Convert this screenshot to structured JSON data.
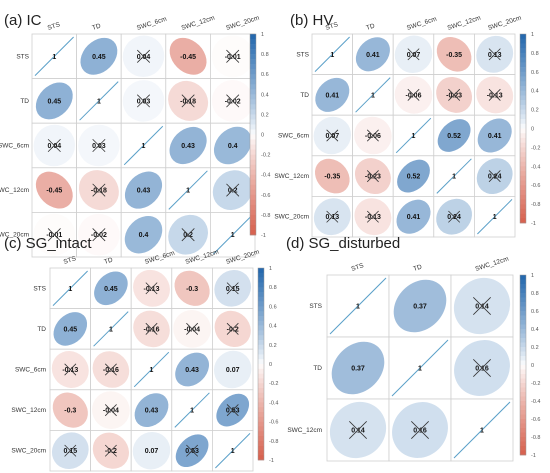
{
  "colors": {
    "positive": "#2166ac",
    "negative": "#d6604d",
    "neutral": "#ffffff",
    "grid": "#cfcfcf",
    "diag": "#5aa0c8"
  },
  "chart_data": [
    {
      "type": "heatmap",
      "title": "(a) IC",
      "variables": [
        "STS",
        "TD",
        "SWC_6cm",
        "SWC_12cm",
        "SWC_20cm"
      ],
      "matrix": [
        [
          1,
          0.45,
          0.04,
          -0.45,
          -0.01
        ],
        [
          0.45,
          1,
          0.03,
          -0.18,
          -0.02
        ],
        [
          0.04,
          0.03,
          1,
          0.43,
          0.4
        ],
        [
          -0.45,
          -0.18,
          0.43,
          1,
          0.2
        ],
        [
          -0.01,
          -0.02,
          0.4,
          0.2,
          1
        ]
      ],
      "labels": [
        [
          "1",
          "0.45",
          "0.04",
          "-0.45",
          "-0.01"
        ],
        [
          "0.45",
          "1",
          "0.03",
          "-0.18",
          "-0.02"
        ],
        [
          "0.04",
          "0.03",
          "1",
          "0.43",
          "0.4"
        ],
        [
          "-0.45",
          "-0.18",
          "0.43",
          "1",
          "0.2"
        ],
        [
          "-0.01",
          "-0.02",
          "0.4",
          "0.2",
          "1"
        ]
      ],
      "crossed": [
        [
          false,
          false,
          true,
          false,
          true
        ],
        [
          false,
          false,
          true,
          true,
          true
        ],
        [
          true,
          true,
          false,
          false,
          false
        ],
        [
          false,
          true,
          false,
          false,
          true
        ],
        [
          true,
          true,
          false,
          true,
          false
        ]
      ],
      "colorbar_ticks": [
        "1",
        "0.8",
        "0.6",
        "0.4",
        "0.2",
        "0",
        "-0.2",
        "-0.4",
        "-0.6",
        "-0.8",
        "-1"
      ],
      "range": [
        -1,
        1
      ]
    },
    {
      "type": "heatmap",
      "title": "(b) HV",
      "variables": [
        "STS",
        "TD",
        "SWC_6cm",
        "SWC_12cm",
        "SWC_20cm"
      ],
      "matrix": [
        [
          1,
          0.41,
          0.07,
          -0.35,
          0.13
        ],
        [
          0.41,
          1,
          -0.06,
          -0.23,
          -0.13
        ],
        [
          0.07,
          -0.06,
          1,
          0.52,
          0.41
        ],
        [
          -0.35,
          -0.23,
          0.52,
          1,
          0.24
        ],
        [
          0.13,
          -0.13,
          0.41,
          0.24,
          1
        ]
      ],
      "labels": [
        [
          "1",
          "0.41",
          "0.07",
          "-0.35",
          "0.13"
        ],
        [
          "0.41",
          "1",
          "-0.06",
          "-0.23",
          "-0.13"
        ],
        [
          "0.07",
          "-0.06",
          "1",
          "0.52",
          "0.41"
        ],
        [
          "-0.35",
          "-0.23",
          "0.52",
          "1",
          "0.24"
        ],
        [
          "0.13",
          "-0.13",
          "0.41",
          "0.24",
          "1"
        ]
      ],
      "crossed": [
        [
          false,
          false,
          true,
          false,
          true
        ],
        [
          false,
          false,
          true,
          true,
          true
        ],
        [
          true,
          true,
          false,
          false,
          false
        ],
        [
          false,
          true,
          false,
          false,
          true
        ],
        [
          true,
          true,
          false,
          true,
          false
        ]
      ],
      "colorbar_ticks": [
        "1",
        "0.8",
        "0.6",
        "0.4",
        "0.2",
        "0",
        "-0.2",
        "-0.4",
        "-0.6",
        "-0.8",
        "-1"
      ],
      "range": [
        -1,
        1
      ]
    },
    {
      "type": "heatmap",
      "title": "(c) SG_intact",
      "variables": [
        "STS",
        "TD",
        "SWC_6cm",
        "SWC_12cm",
        "SWC_20cm"
      ],
      "matrix": [
        [
          1,
          0.45,
          -0.13,
          -0.3,
          0.15
        ],
        [
          0.45,
          1,
          -0.16,
          -0.04,
          -0.2
        ],
        [
          -0.13,
          -0.16,
          1,
          0.43,
          0.07
        ],
        [
          -0.3,
          -0.04,
          0.43,
          1,
          0.53
        ],
        [
          0.15,
          -0.2,
          0.07,
          0.53,
          1
        ]
      ],
      "labels": [
        [
          "1",
          "0.45",
          "-0.13",
          "-0.3",
          "0.15"
        ],
        [
          "0.45",
          "1",
          "-0.16",
          "-0.04",
          "-0.2"
        ],
        [
          "-0.13",
          "-0.16",
          "1",
          "0.43",
          "0.07"
        ],
        [
          "-0.3",
          "-0.04",
          "0.43",
          "1",
          "0.53"
        ],
        [
          "0.15",
          "-0.2",
          "0.07",
          "0.53",
          "1"
        ]
      ],
      "crossed": [
        [
          false,
          false,
          true,
          false,
          true
        ],
        [
          false,
          false,
          true,
          true,
          true
        ],
        [
          true,
          true,
          false,
          false,
          false
        ],
        [
          false,
          true,
          false,
          false,
          true
        ],
        [
          true,
          true,
          false,
          true,
          false
        ]
      ],
      "colorbar_ticks": [
        "1",
        "0.8",
        "0.6",
        "0.4",
        "0.2",
        "0",
        "-0.2",
        "-0.4",
        "-0.6",
        "-0.8",
        "-1"
      ],
      "range": [
        -1,
        1
      ]
    },
    {
      "type": "heatmap",
      "title": "(d) SG_disturbed",
      "variables": [
        "STS",
        "TD",
        "SWC_12cm"
      ],
      "matrix": [
        [
          1,
          0.37,
          0.14
        ],
        [
          0.37,
          1,
          0.16
        ],
        [
          0.14,
          0.16,
          1
        ]
      ],
      "labels": [
        [
          "1",
          "0.37",
          "0.14"
        ],
        [
          "0.37",
          "1",
          "0.16"
        ],
        [
          "0.14",
          "0.16",
          "1"
        ]
      ],
      "crossed": [
        [
          false,
          false,
          true
        ],
        [
          false,
          false,
          true
        ],
        [
          true,
          true,
          false
        ]
      ],
      "colorbar_ticks": [
        "1",
        "0.8",
        "0.6",
        "0.4",
        "0.2",
        "0",
        "-0.2",
        "-0.4",
        "-0.6",
        "-0.8",
        "-1"
      ],
      "range": [
        -1,
        1
      ]
    }
  ]
}
